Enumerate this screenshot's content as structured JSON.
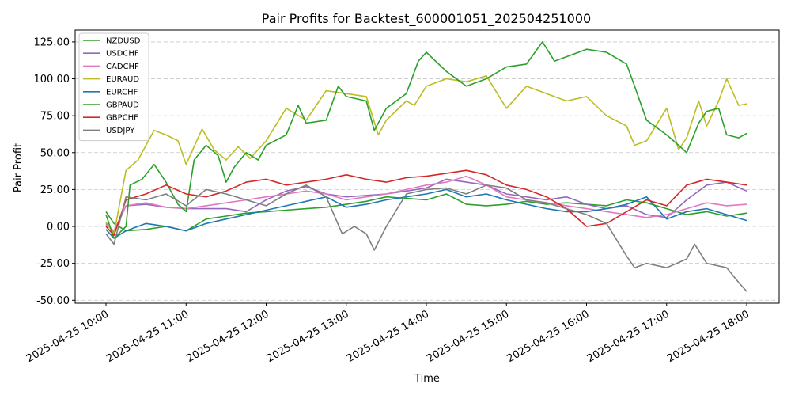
{
  "chart_data": {
    "type": "line",
    "title": "Pair Profits for Backtest_600001051_202504251000",
    "xlabel": "Time",
    "ylabel": "Pair Profit",
    "x_range": [
      "2025-04-25 10:00",
      "2025-04-25 18:00"
    ],
    "ylim": [
      -52,
      133
    ],
    "y_ticks": [
      125,
      100,
      75,
      50,
      25,
      0,
      -25,
      -50
    ],
    "y_tick_labels": [
      "125.00",
      "100.00",
      "75.00",
      "50.00",
      "25.00",
      "0.00",
      "-25.00",
      "-50.00"
    ],
    "x_tick_labels": [
      "2025-04-25 10:00",
      "2025-04-25 11:00",
      "2025-04-25 12:00",
      "2025-04-25 13:00",
      "2025-04-25 14:00",
      "2025-04-25 15:00",
      "2025-04-25 16:00",
      "2025-04-25 17:00",
      "2025-04-25 18:00"
    ],
    "grid": "y-dashed",
    "legend_position": "top-left",
    "x_unit": "hours since 2025-04-25 10:00",
    "series": [
      {
        "name": "NZDUSD",
        "color": "#2ca02c",
        "x": [
          0,
          0.1,
          0.25,
          0.5,
          0.75,
          1,
          1.25,
          1.5,
          1.75,
          2,
          2.25,
          2.5,
          2.75,
          3,
          3.25,
          3.5,
          3.75,
          4,
          4.25,
          4.5,
          4.75,
          5,
          5.25,
          5.5,
          5.75,
          6,
          6.25,
          6.5,
          6.75,
          7,
          7.25,
          7.5,
          7.75,
          8
        ],
        "y": [
          10,
          2,
          -3,
          -2,
          0,
          -3,
          5,
          7,
          9,
          10,
          11,
          12,
          13,
          15,
          17,
          20,
          19,
          18,
          22,
          15,
          14,
          15,
          17,
          15,
          16,
          15,
          14,
          18,
          16,
          12,
          8,
          10,
          7,
          9
        ]
      },
      {
        "name": "USDCHF",
        "color": "#9467bd",
        "x": [
          0,
          0.1,
          0.25,
          0.5,
          0.75,
          1,
          1.25,
          1.5,
          1.75,
          2,
          2.25,
          2.5,
          2.75,
          3,
          3.25,
          3.5,
          3.75,
          4,
          4.25,
          4.5,
          4.75,
          5,
          5.25,
          5.5,
          5.75,
          6,
          6.25,
          6.5,
          6.75,
          7,
          7.25,
          7.5,
          7.75,
          8
        ],
        "y": [
          2,
          -4,
          14,
          15,
          13,
          12,
          12,
          12,
          10,
          18,
          24,
          27,
          22,
          20,
          21,
          22,
          24,
          26,
          32,
          30,
          28,
          22,
          20,
          18,
          20,
          15,
          12,
          14,
          8,
          6,
          18,
          28,
          30,
          24
        ]
      },
      {
        "name": "CADCHF",
        "color": "#e377c2",
        "x": [
          0,
          0.1,
          0.25,
          0.5,
          0.75,
          1,
          1.25,
          1.5,
          1.75,
          2,
          2.25,
          2.5,
          2.75,
          3,
          3.25,
          3.5,
          3.75,
          4,
          4.25,
          4.5,
          4.75,
          5,
          5.25,
          5.5,
          5.75,
          6,
          6.25,
          6.5,
          6.75,
          7,
          7.25,
          7.5,
          7.75,
          8
        ],
        "y": [
          1,
          -3,
          14,
          16,
          13,
          12,
          14,
          16,
          18,
          20,
          22,
          24,
          22,
          18,
          20,
          22,
          25,
          28,
          30,
          34,
          28,
          20,
          18,
          16,
          14,
          12,
          10,
          8,
          6,
          8,
          12,
          16,
          14,
          15
        ]
      },
      {
        "name": "EURAUD",
        "color": "#bcbd22",
        "x": [
          0,
          0.1,
          0.25,
          0.4,
          0.6,
          0.75,
          0.9,
          1,
          1.2,
          1.35,
          1.5,
          1.65,
          1.8,
          2,
          2.25,
          2.5,
          2.75,
          3,
          3.25,
          3.4,
          3.5,
          3.75,
          3.85,
          4,
          4.25,
          4.5,
          4.75,
          5,
          5.25,
          5.5,
          5.75,
          6,
          6.25,
          6.5,
          6.6,
          6.75,
          7,
          7.15,
          7.25,
          7.4,
          7.5,
          7.65,
          7.75,
          7.9,
          8
        ],
        "y": [
          3,
          -5,
          38,
          45,
          65,
          62,
          58,
          42,
          66,
          52,
          45,
          54,
          46,
          58,
          80,
          72,
          92,
          90,
          88,
          62,
          72,
          85,
          82,
          95,
          100,
          98,
          102,
          80,
          95,
          90,
          85,
          88,
          75,
          68,
          55,
          58,
          80,
          52,
          60,
          85,
          68,
          85,
          100,
          82,
          83
        ]
      },
      {
        "name": "EURCHF",
        "color": "#1f77b4",
        "x": [
          0,
          0.1,
          0.25,
          0.5,
          0.75,
          1,
          1.25,
          1.5,
          1.75,
          2,
          2.25,
          2.5,
          2.75,
          3,
          3.25,
          3.5,
          3.75,
          4,
          4.25,
          4.5,
          4.75,
          5,
          5.25,
          5.5,
          5.75,
          6,
          6.25,
          6.5,
          6.75,
          7,
          7.25,
          7.5,
          7.75,
          8
        ],
        "y": [
          -2,
          -8,
          -3,
          2,
          0,
          -3,
          2,
          5,
          8,
          11,
          14,
          17,
          20,
          13,
          15,
          18,
          20,
          22,
          25,
          20,
          22,
          18,
          15,
          12,
          10,
          10,
          12,
          15,
          20,
          5,
          10,
          12,
          8,
          4
        ]
      },
      {
        "name": "GBPAUD",
        "color": "#2ca02c",
        "x": [
          0,
          0.1,
          0.25,
          0.3,
          0.45,
          0.6,
          0.75,
          0.9,
          1,
          1.1,
          1.25,
          1.4,
          1.5,
          1.6,
          1.75,
          1.9,
          2,
          2.25,
          2.4,
          2.5,
          2.75,
          2.9,
          3,
          3.25,
          3.35,
          3.5,
          3.75,
          3.9,
          4,
          4.25,
          4.5,
          4.75,
          5,
          5.25,
          5.45,
          5.6,
          5.75,
          6,
          6.25,
          6.5,
          6.6,
          6.75,
          7,
          7.15,
          7.25,
          7.4,
          7.5,
          7.65,
          7.75,
          7.9,
          8
        ],
        "y": [
          8,
          -8,
          0,
          28,
          32,
          42,
          30,
          15,
          10,
          45,
          55,
          48,
          30,
          40,
          50,
          45,
          55,
          62,
          82,
          70,
          72,
          95,
          88,
          85,
          65,
          80,
          90,
          112,
          118,
          105,
          95,
          100,
          108,
          110,
          125,
          112,
          115,
          120,
          118,
          110,
          95,
          72,
          62,
          55,
          50,
          70,
          78,
          80,
          62,
          60,
          63
        ]
      },
      {
        "name": "GBPCHF",
        "color": "#d62728",
        "x": [
          0,
          0.1,
          0.25,
          0.5,
          0.75,
          1,
          1.25,
          1.5,
          1.75,
          2,
          2.25,
          2.5,
          2.75,
          3,
          3.25,
          3.5,
          3.75,
          4,
          4.25,
          4.5,
          4.75,
          5,
          5.25,
          5.5,
          5.75,
          6,
          6.25,
          6.5,
          6.75,
          7,
          7.25,
          7.5,
          7.75,
          8
        ],
        "y": [
          0,
          -6,
          18,
          22,
          28,
          22,
          20,
          24,
          30,
          32,
          28,
          30,
          32,
          35,
          32,
          30,
          33,
          34,
          36,
          38,
          35,
          28,
          25,
          20,
          12,
          0,
          2,
          10,
          18,
          14,
          28,
          32,
          30,
          28
        ]
      },
      {
        "name": "USDJPY",
        "color": "#7f7f7f",
        "x": [
          0,
          0.1,
          0.25,
          0.5,
          0.75,
          1,
          1.25,
          1.5,
          1.75,
          2,
          2.25,
          2.5,
          2.75,
          2.95,
          3.1,
          3.25,
          3.35,
          3.5,
          3.75,
          4,
          4.25,
          4.5,
          4.75,
          5,
          5.25,
          5.5,
          5.75,
          6,
          6.25,
          6.5,
          6.6,
          6.75,
          7,
          7.25,
          7.35,
          7.5,
          7.75,
          7.9,
          8
        ],
        "y": [
          -5,
          -12,
          20,
          18,
          22,
          14,
          25,
          22,
          18,
          14,
          22,
          28,
          20,
          -5,
          0,
          -5,
          -16,
          0,
          22,
          25,
          26,
          22,
          28,
          26,
          18,
          16,
          12,
          8,
          2,
          -20,
          -28,
          -25,
          -28,
          -22,
          -12,
          -25,
          -28,
          -38,
          -44
        ]
      }
    ]
  }
}
